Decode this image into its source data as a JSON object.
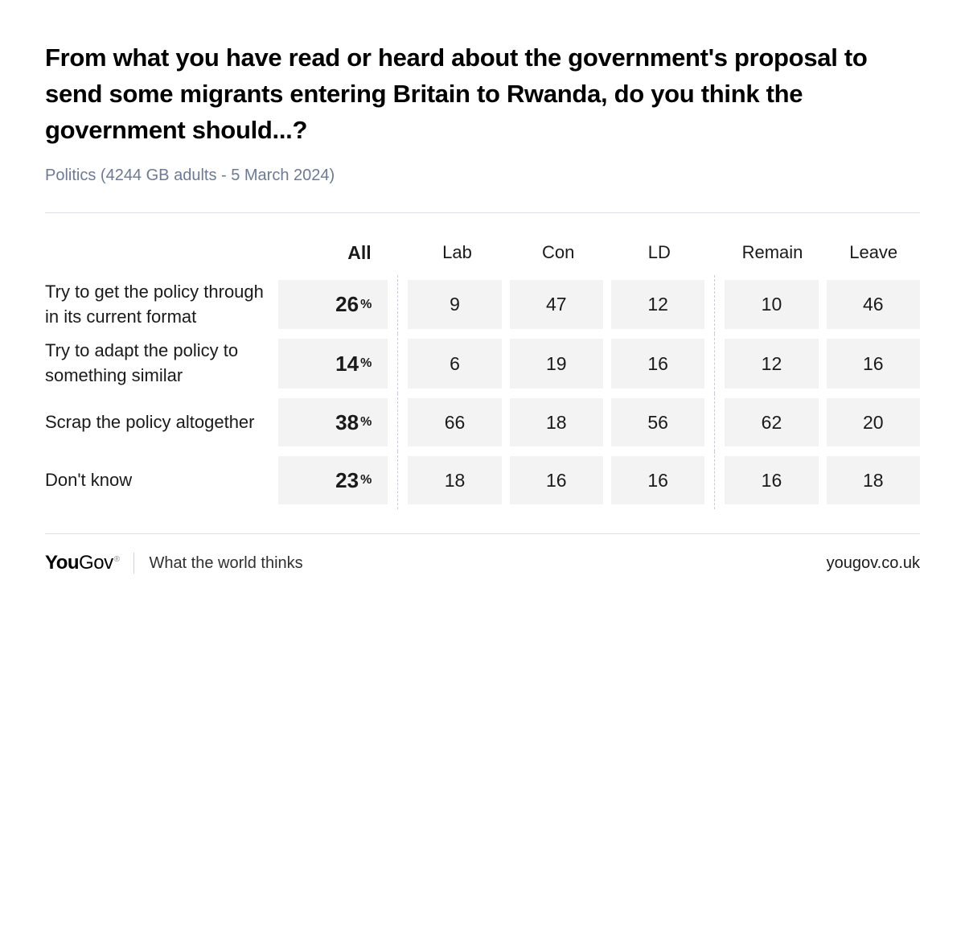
{
  "title": "From what you have read or heard about the government's proposal to send some migrants entering Britain to Rwanda, do you think the government should...?",
  "subtitle": "Politics (4244 GB adults - 5 March 2024)",
  "table": {
    "type": "table",
    "columns": [
      "All",
      "Lab",
      "Con",
      "LD",
      "Remain",
      "Leave"
    ],
    "group_separators_after": [
      0,
      3
    ],
    "bold_column_index": 0,
    "all_column_suffix": "%",
    "rows": [
      {
        "label": "Try to get the policy through in its current format",
        "values": [
          26,
          9,
          47,
          12,
          10,
          46
        ]
      },
      {
        "label": "Try to adapt the policy to something similar",
        "values": [
          14,
          6,
          19,
          16,
          12,
          16
        ]
      },
      {
        "label": "Scrap the policy altogether",
        "values": [
          38,
          66,
          18,
          56,
          62,
          20
        ]
      },
      {
        "label": "Don't know",
        "values": [
          23,
          18,
          16,
          16,
          16,
          18
        ]
      }
    ],
    "cell_background": "#f3f3f4",
    "separator_color": "#c9ccd4",
    "rule_color": "#dcdfe6",
    "label_fontsize": 22,
    "value_fontsize": 23,
    "all_value_fontsize": 26
  },
  "footer": {
    "logo_you": "You",
    "logo_gov": "Gov",
    "tagline": "What the world thinks",
    "url": "yougov.co.uk"
  },
  "colors": {
    "background": "#ffffff",
    "text": "#000000",
    "subtitle": "#6d7a96"
  }
}
